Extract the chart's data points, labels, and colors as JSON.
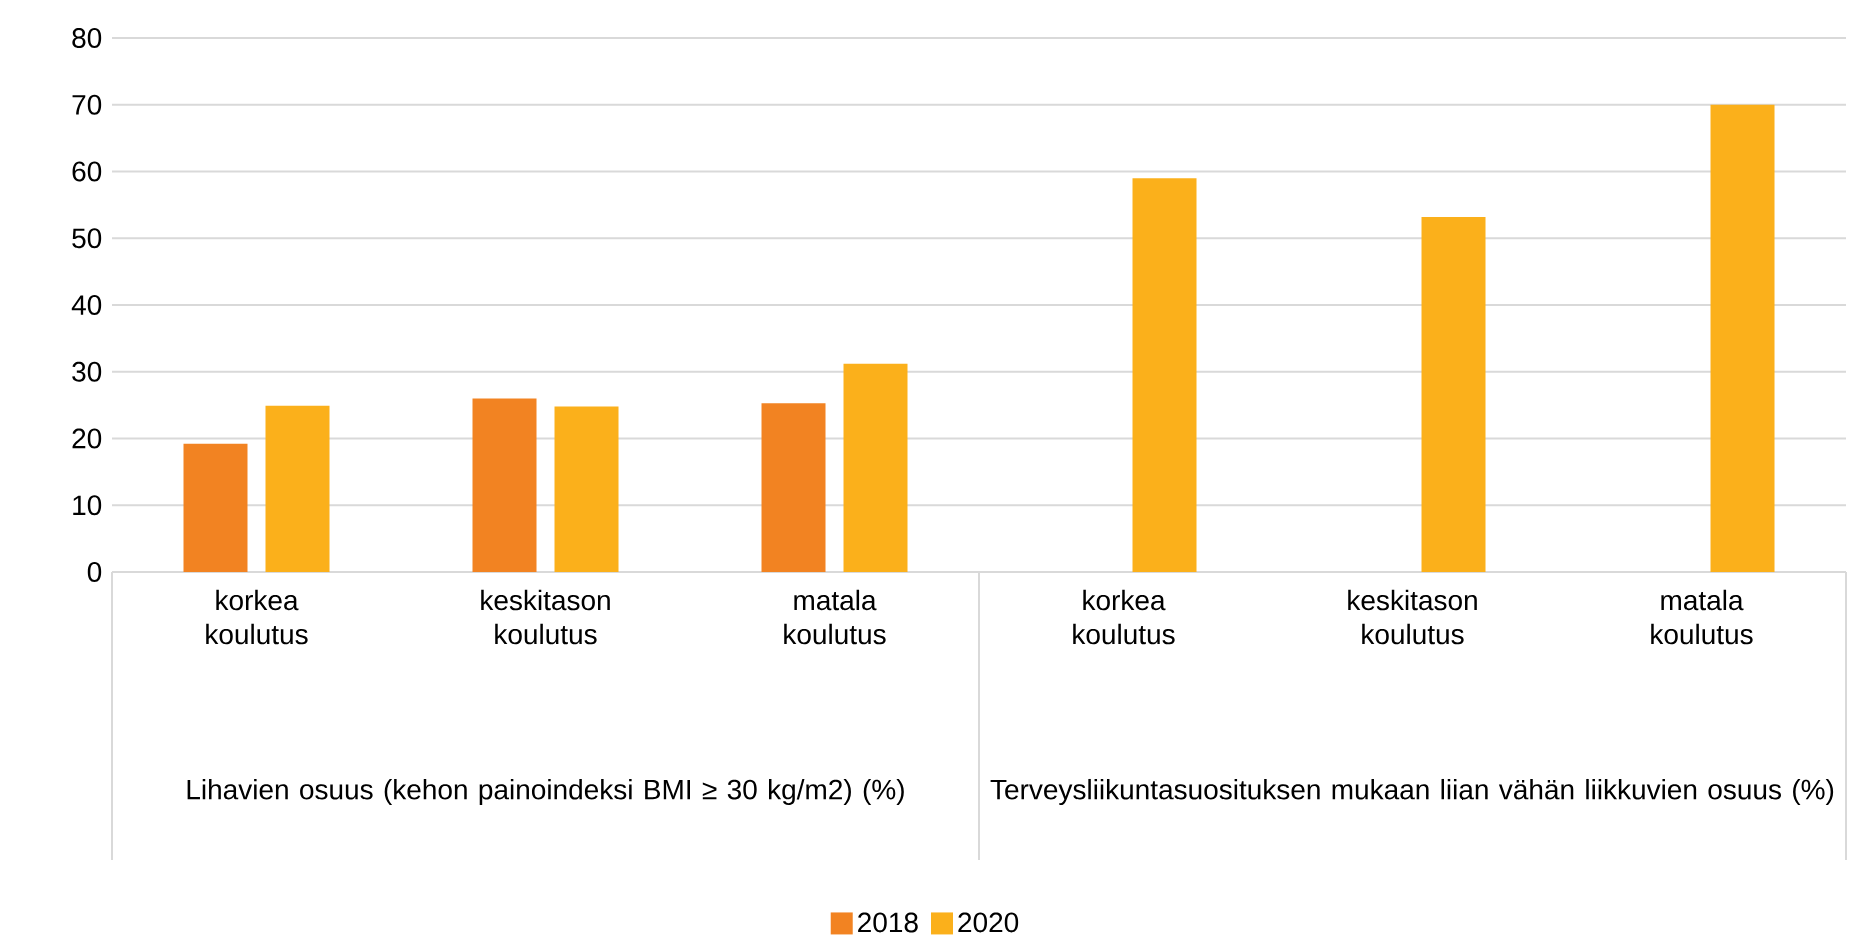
{
  "chart_data": {
    "type": "bar",
    "categories": [
      "korkea koulutus",
      "keskitason koulutus",
      "matala koulutus",
      "korkea koulutus",
      "keskitason koulutus",
      "matala koulutus"
    ],
    "series": [
      {
        "name": "2018",
        "color": "#f28322",
        "values": [
          19.2,
          26.0,
          25.3,
          null,
          null,
          null
        ]
      },
      {
        "name": "2020",
        "color": "#fbb01b",
        "values": [
          24.9,
          24.8,
          31.2,
          59.0,
          53.2,
          70.0
        ]
      }
    ],
    "ylim": [
      0,
      80
    ],
    "yticks": [
      0,
      10,
      20,
      30,
      40,
      50,
      60,
      70,
      80
    ],
    "grid": "y",
    "legend": "bottom",
    "annotations": [
      "Lihavien osuus (kehon painoindeksi BMI ≥ 30 kg/m2) (%)",
      "Terveysliikuntasuosituksen mukaan liian vähän liikkuvien osuus (%)"
    ]
  }
}
